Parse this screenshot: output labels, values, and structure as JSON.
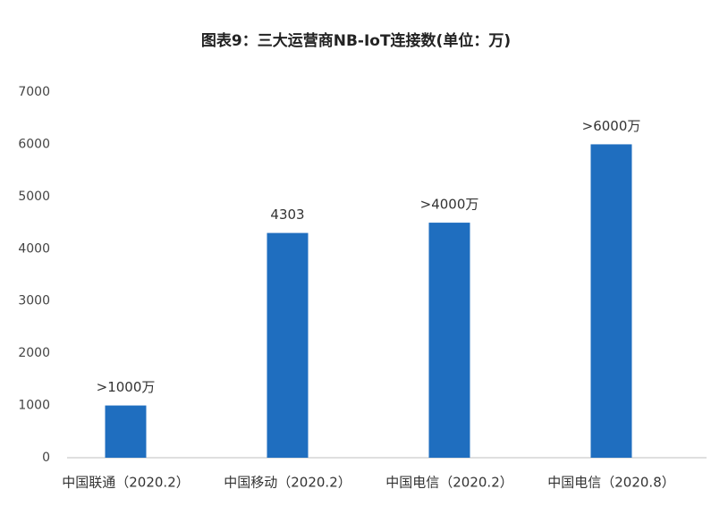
{
  "chart_data": {
    "type": "bar",
    "title": "图表9：三大运营商NB-IoT连接数(单位：万)",
    "categories": [
      "中国联通（2020.2）",
      "中国移动（2020.2）",
      "中国电信（2020.2）",
      "中国电信（2020.8）"
    ],
    "values": [
      1000,
      4303,
      4500,
      6000
    ],
    "value_labels": [
      ">1000万",
      "4303",
      ">4000万",
      ">6000万"
    ],
    "color": "#1f6ebf",
    "ylim": [
      0,
      7000
    ],
    "yticks": [
      0,
      1000,
      2000,
      3000,
      4000,
      5000,
      6000,
      7000
    ],
    "grid": false
  }
}
